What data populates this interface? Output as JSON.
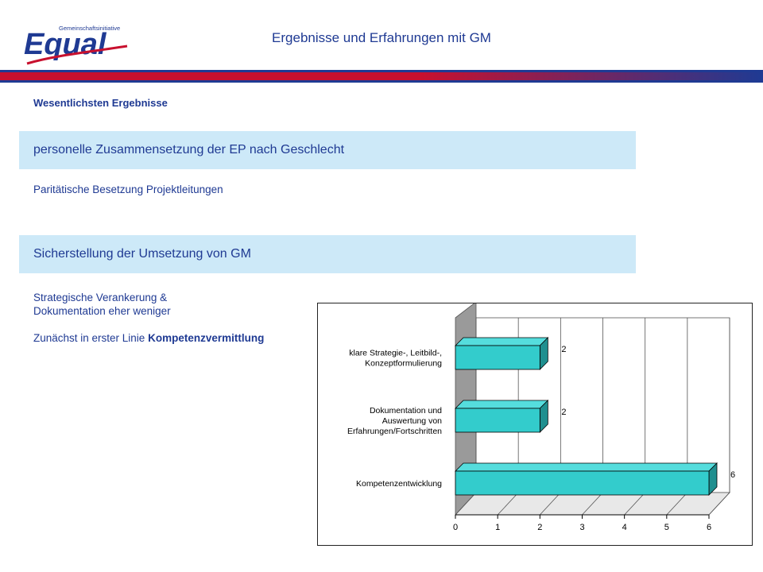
{
  "header": {
    "logo_small": "Gemeinschaftsinitiative",
    "logo_word": "Equal",
    "title": "Ergebnisse und Erfahrungen mit GM",
    "colors": {
      "text": "#1f3a93",
      "strip_left": "#c8102e",
      "strip_right": "#1f3a93"
    }
  },
  "section_label": "Wesentlichsten Ergebnisse",
  "band1": {
    "title": "personelle Zusammensetzung der EP nach Geschlecht",
    "text": "Paritätische Besetzung Projektleitungen"
  },
  "band2": {
    "title": "Sicherstellung der Umsetzung von GM",
    "line1": "Strategische Verankerung &",
    "line2": "Dokumentation eher weniger",
    "line3_prefix": "Zunächst in erster Linie ",
    "line3_bold": "Kompetenzvermittlung"
  },
  "chart_data": {
    "type": "bar",
    "orientation": "horizontal",
    "categories": [
      [
        "klare Strategie-, Leitbild-,",
        "Konzeptformulierung"
      ],
      [
        "Dokumentation und",
        "Auswertung von",
        "Erfahrungen/Fortschritten"
      ],
      [
        "Kompetenzentwicklung"
      ]
    ],
    "values": [
      2,
      2,
      6
    ],
    "xlim": [
      0,
      6
    ],
    "xticks": [
      "0",
      "1",
      "2",
      "3",
      "4",
      "5",
      "6"
    ],
    "grid": true,
    "bar_color": "#33cccc",
    "title": "",
    "xlabel": "",
    "ylabel": ""
  }
}
